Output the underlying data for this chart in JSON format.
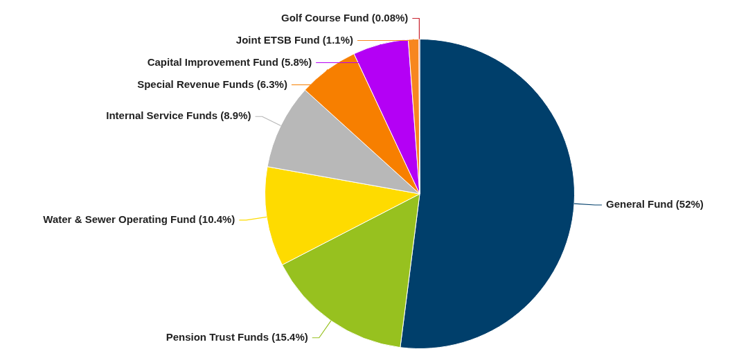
{
  "chart_data": {
    "type": "pie",
    "categories": [
      "General Fund",
      "Pension Trust Funds",
      "Water & Sewer Operating Fund",
      "Internal Service Funds",
      "Special Revenue Funds",
      "Capital Improvement Fund",
      "Joint ETSB Fund",
      "Golf Course Fund"
    ],
    "values": [
      52,
      15.4,
      10.4,
      8.9,
      6.3,
      5.8,
      1.1,
      0.08
    ],
    "value_labels": [
      "(52%)",
      "(15.4%)",
      "(10.4%)",
      "(8.9%)",
      "(6.3%)",
      "(5.8%)",
      "(1.1%)",
      "(0.08%)"
    ],
    "colors": [
      "#003f6b",
      "#97c11f",
      "#fedb00",
      "#b8b8b8",
      "#f77f00",
      "#b400f5",
      "#f7861f",
      "#c8202c"
    ]
  }
}
